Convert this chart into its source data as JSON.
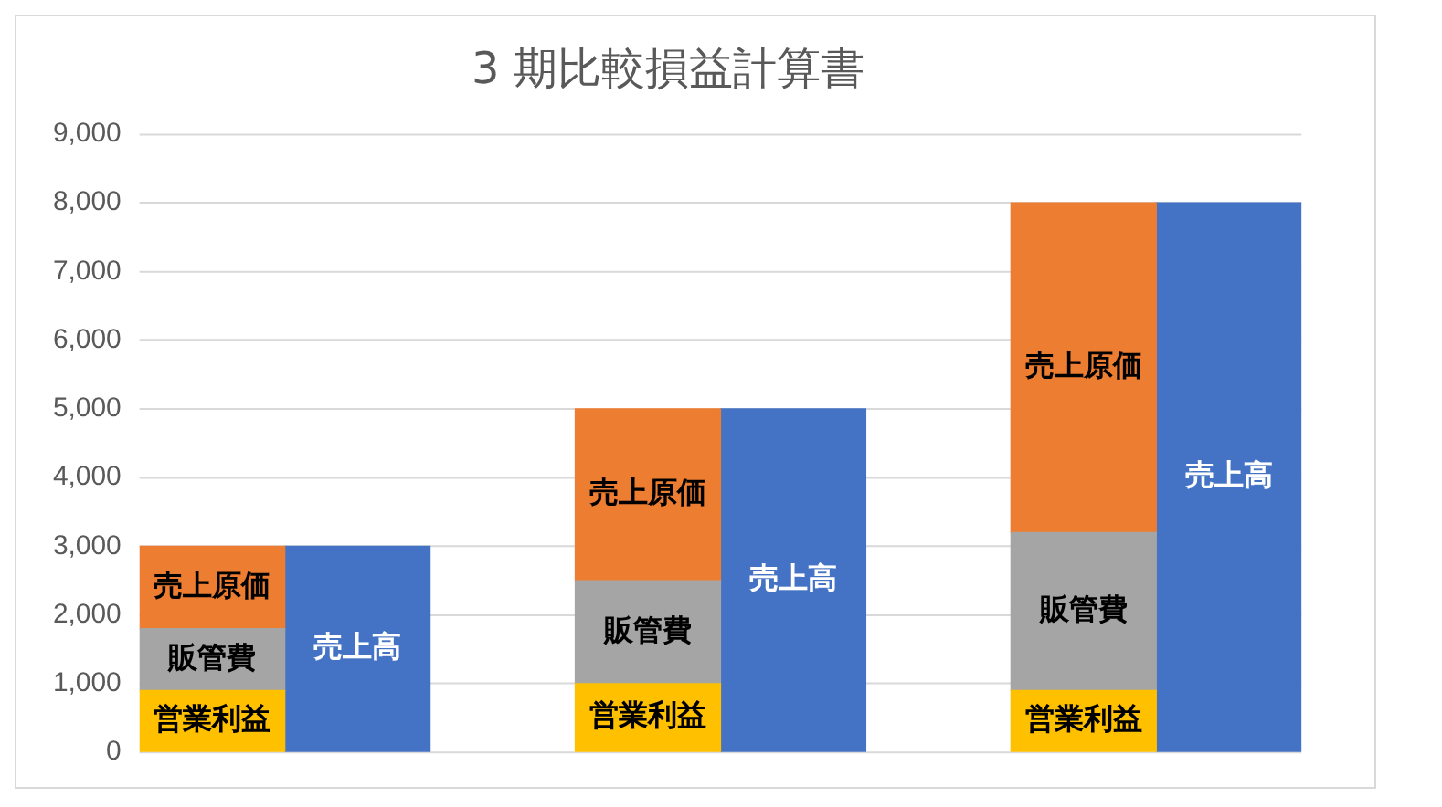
{
  "chart_data": {
    "type": "bar",
    "title": "3 期比較損益計算書",
    "stacked": true,
    "categories": [
      null,
      null,
      null,
      null,
      null,
      null,
      null,
      null
    ],
    "series": [
      {
        "name": "営業利益",
        "color": "#ffc000",
        "values": [
          900,
          null,
          null,
          1000,
          null,
          null,
          900,
          null
        ]
      },
      {
        "name": "販管費",
        "color": "#a5a5a5",
        "values": [
          900,
          null,
          null,
          1500,
          null,
          null,
          2300,
          null
        ]
      },
      {
        "name": "売上原価",
        "color": "#ed7d31",
        "values": [
          1200,
          null,
          null,
          2500,
          null,
          null,
          4800,
          null
        ]
      },
      {
        "name": "売上高",
        "color": "#4472c4",
        "values": [
          null,
          3000,
          null,
          null,
          5000,
          null,
          null,
          8000
        ]
      }
    ],
    "ylim": [
      0,
      9000
    ],
    "yticks": [
      0,
      {
        "value": 1000,
        "label": "1,000"
      },
      {
        "value": 2000,
        "label": "2,000"
      },
      {
        "value": 3000,
        "label": "3,000"
      },
      {
        "value": 4000,
        "label": "4,000"
      },
      {
        "value": 5000,
        "label": "5,000"
      },
      {
        "value": 6000,
        "label": "6,000"
      },
      {
        "value": 7000,
        "label": "7,000"
      },
      {
        "value": 8000,
        "label": "8,000"
      },
      {
        "value": 9000,
        "label": "9,000"
      }
    ],
    "grid": "y",
    "legend": false
  }
}
